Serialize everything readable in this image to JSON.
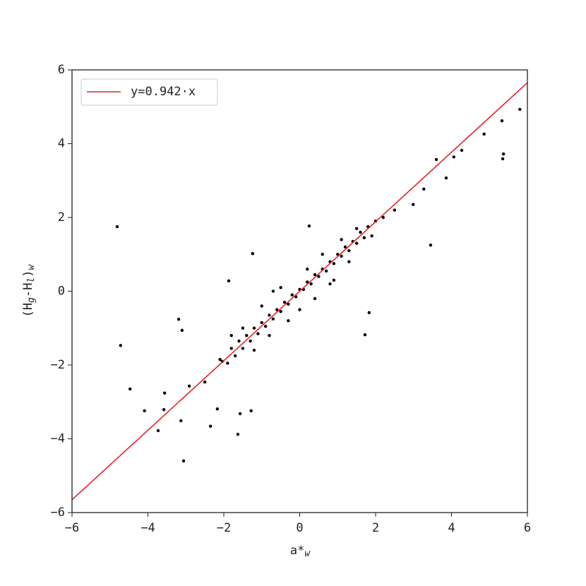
{
  "chart_data": {
    "type": "scatter",
    "xlabel": "a*",
    "xlabel_sub": "w",
    "ylabel_parts": [
      "(H",
      "g",
      "-H",
      "l",
      ")",
      "w"
    ],
    "xlim": [
      -6,
      6
    ],
    "ylim": [
      -6,
      6
    ],
    "xticks": [
      {
        "value": -6,
        "label": "−6"
      },
      {
        "value": -4,
        "label": "−4"
      },
      {
        "value": -2,
        "label": "−2"
      },
      0,
      2,
      4,
      6
    ],
    "yticks": [
      {
        "value": -6,
        "label": "−6"
      },
      {
        "value": -4,
        "label": "−4"
      },
      {
        "value": -2,
        "label": "−2"
      },
      0,
      2,
      4,
      6
    ],
    "color": "#000000",
    "x": [
      -4.81,
      -4.72,
      -4.47,
      -4.09,
      -3.73,
      -3.58,
      -3.19,
      -3.1,
      -3.06,
      -3.13,
      -2.35,
      -1.57,
      -1.63,
      -1.87,
      -1.24,
      0.25,
      1.83,
      1.72,
      3.45,
      3.86,
      4.86,
      5.33,
      5.35,
      5.8,
      5.37,
      4.27,
      4.06,
      3.6,
      3.27,
      2.99,
      -3.56,
      -2.91,
      -2.5,
      -2.04,
      -1.28,
      -2.17,
      -2.1,
      -1.9,
      -1.8,
      -1.7,
      -1.6,
      -1.5,
      -1.4,
      -1.3,
      -1.2,
      -1.1,
      -1.0,
      -0.9,
      -0.8,
      -0.7,
      -0.6,
      -0.5,
      -0.4,
      -0.3,
      -0.2,
      -0.1,
      0,
      0.1,
      0.2,
      0.3,
      0.4,
      0.5,
      0.6,
      0.7,
      0.8,
      0.9,
      1.0,
      1.1,
      1.2,
      1.3,
      1.4,
      1.5,
      1.6,
      1.7,
      1.8,
      2.0,
      2.2,
      2.5,
      -1.5,
      -1.2,
      -1.0,
      -0.8,
      -0.5,
      -0.3,
      0,
      0.2,
      0.4,
      0.6,
      0.9,
      1.1,
      1.3,
      1.5,
      -0.7,
      0.8,
      -1.8,
      1.9
    ],
    "y": [
      1.75,
      -1.47,
      -2.65,
      -3.24,
      -3.78,
      -3.21,
      -0.76,
      -1.06,
      -4.6,
      -3.51,
      -3.66,
      -3.32,
      -3.88,
      0.28,
      1.02,
      1.77,
      -0.58,
      -1.18,
      1.25,
      3.07,
      4.26,
      4.62,
      3.59,
      4.93,
      3.72,
      3.82,
      3.64,
      3.57,
      2.77,
      2.35,
      -2.76,
      -2.57,
      -2.46,
      -1.9,
      -3.24,
      -3.19,
      -1.85,
      -1.95,
      -1.55,
      -1.75,
      -1.35,
      -1.55,
      -1.2,
      -1.35,
      -1.0,
      -1.15,
      -0.85,
      -0.95,
      -0.65,
      -0.75,
      -0.5,
      -0.55,
      -0.3,
      -0.35,
      -0.1,
      -0.15,
      0.05,
      0.05,
      0.25,
      0.2,
      0.45,
      0.4,
      0.6,
      0.55,
      0.8,
      0.75,
      1.0,
      0.95,
      1.2,
      1.1,
      1.35,
      1.3,
      1.6,
      1.45,
      1.75,
      1.9,
      2.0,
      2.2,
      -1.0,
      -1.6,
      -0.4,
      -1.2,
      0.1,
      -0.8,
      -0.5,
      0.6,
      -0.2,
      1.0,
      0.3,
      1.4,
      0.8,
      1.7,
      0.0,
      0.2,
      -1.2,
      1.5
    ],
    "fit_line": {
      "name": "y=0.942·x",
      "color": "#e8212a",
      "x": [
        -6,
        6
      ],
      "y": [
        -5.652,
        5.652
      ]
    },
    "legend": "upper left"
  }
}
